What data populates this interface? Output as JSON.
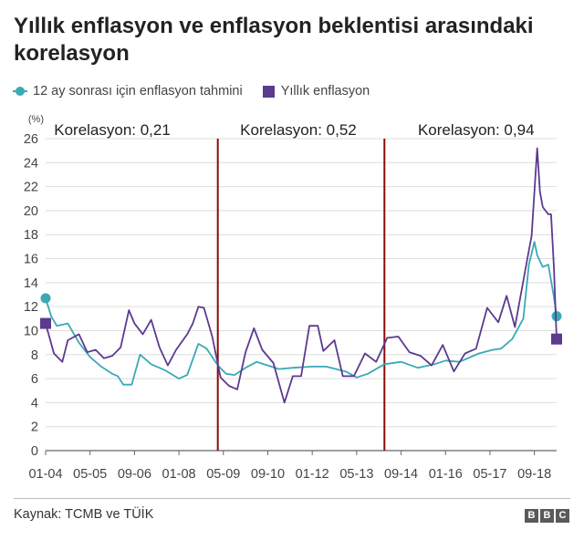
{
  "title": "Yıllık enflasyon ve enflasyon beklentisi arasındaki korelasyon",
  "source": "Kaynak: TCMB ve TÜİK",
  "logo": "BBC",
  "colors": {
    "expectation": "#3aa9b5",
    "inflation": "#5c3a8f",
    "divider": "#8b0a0a"
  },
  "chart_data": {
    "type": "line",
    "title": "Yıllık enflasyon ve enflasyon beklentisi arasındaki korelasyon",
    "ylabel": "(%)",
    "ylim": [
      0,
      26
    ],
    "yticks": [
      0,
      2,
      4,
      6,
      8,
      10,
      12,
      14,
      16,
      18,
      20,
      22,
      24,
      26
    ],
    "xlim": [
      "2004-01",
      "2019-05"
    ],
    "xticks": [
      "01-04",
      "05-05",
      "09-06",
      "01-08",
      "05-09",
      "09-10",
      "01-12",
      "05-13",
      "09-14",
      "01-16",
      "05-17",
      "09-18"
    ],
    "legend": [
      "12 ay sonrası için enflasyon tahmini",
      "Yıllık enflasyon"
    ],
    "legend_position": "top-left",
    "grid": "horizontal",
    "dividers": [
      "2009-03",
      "2014-03"
    ],
    "annotations": [
      "Korelasyon: 0,21",
      "Korelasyon: 0,52",
      "Korelasyon: 0,94"
    ],
    "series": [
      {
        "name": "12 ay sonrası için enflasyon tahmini",
        "marker": "circle",
        "points": [
          [
            "2004-01",
            12.7
          ],
          [
            "2004-03",
            11.2
          ],
          [
            "2004-05",
            10.4
          ],
          [
            "2004-09",
            10.6
          ],
          [
            "2005-01",
            9.0
          ],
          [
            "2005-05",
            7.8
          ],
          [
            "2005-09",
            7.0
          ],
          [
            "2006-01",
            6.4
          ],
          [
            "2006-03",
            6.2
          ],
          [
            "2006-05",
            5.5
          ],
          [
            "2006-08",
            5.5
          ],
          [
            "2006-11",
            8.0
          ],
          [
            "2007-03",
            7.2
          ],
          [
            "2007-08",
            6.7
          ],
          [
            "2008-01",
            6.0
          ],
          [
            "2008-04",
            6.3
          ],
          [
            "2008-08",
            8.9
          ],
          [
            "2008-11",
            8.5
          ],
          [
            "2009-03",
            7.1
          ],
          [
            "2009-06",
            6.4
          ],
          [
            "2009-09",
            6.3
          ],
          [
            "2010-01",
            6.9
          ],
          [
            "2010-05",
            7.4
          ],
          [
            "2010-09",
            7.1
          ],
          [
            "2011-01",
            6.8
          ],
          [
            "2011-06",
            6.9
          ],
          [
            "2012-01",
            7.0
          ],
          [
            "2012-06",
            7.0
          ],
          [
            "2013-01",
            6.6
          ],
          [
            "2013-05",
            6.1
          ],
          [
            "2013-09",
            6.4
          ],
          [
            "2014-03",
            7.2
          ],
          [
            "2014-09",
            7.4
          ],
          [
            "2015-03",
            6.9
          ],
          [
            "2015-09",
            7.2
          ],
          [
            "2016-01",
            7.5
          ],
          [
            "2016-06",
            7.4
          ],
          [
            "2017-01",
            8.1
          ],
          [
            "2017-06",
            8.4
          ],
          [
            "2017-09",
            8.5
          ],
          [
            "2018-01",
            9.3
          ],
          [
            "2018-05",
            11.0
          ],
          [
            "2018-07",
            15.5
          ],
          [
            "2018-09",
            17.4
          ],
          [
            "2018-10",
            16.3
          ],
          [
            "2018-12",
            15.3
          ],
          [
            "2019-02",
            15.5
          ],
          [
            "2019-04",
            12.8
          ],
          [
            "2019-05",
            11.2
          ]
        ]
      },
      {
        "name": "Yıllık enflasyon",
        "marker": "square",
        "points": [
          [
            "2004-01",
            10.6
          ],
          [
            "2004-04",
            8.1
          ],
          [
            "2004-07",
            7.4
          ],
          [
            "2004-09",
            9.2
          ],
          [
            "2005-01",
            9.7
          ],
          [
            "2005-04",
            8.2
          ],
          [
            "2005-07",
            8.4
          ],
          [
            "2005-10",
            7.7
          ],
          [
            "2006-01",
            7.9
          ],
          [
            "2006-04",
            8.6
          ],
          [
            "2006-07",
            11.7
          ],
          [
            "2006-09",
            10.6
          ],
          [
            "2006-12",
            9.7
          ],
          [
            "2007-03",
            10.9
          ],
          [
            "2007-06",
            8.6
          ],
          [
            "2007-09",
            7.1
          ],
          [
            "2007-12",
            8.4
          ],
          [
            "2008-04",
            9.7
          ],
          [
            "2008-06",
            10.6
          ],
          [
            "2008-08",
            12.0
          ],
          [
            "2008-10",
            11.9
          ],
          [
            "2009-01",
            9.5
          ],
          [
            "2009-04",
            6.1
          ],
          [
            "2009-07",
            5.4
          ],
          [
            "2009-10",
            5.1
          ],
          [
            "2010-01",
            8.2
          ],
          [
            "2010-04",
            10.2
          ],
          [
            "2010-07",
            8.4
          ],
          [
            "2010-11",
            7.3
          ],
          [
            "2011-03",
            4.0
          ],
          [
            "2011-06",
            6.2
          ],
          [
            "2011-09",
            6.2
          ],
          [
            "2011-12",
            10.4
          ],
          [
            "2012-03",
            10.4
          ],
          [
            "2012-05",
            8.3
          ],
          [
            "2012-09",
            9.2
          ],
          [
            "2012-12",
            6.2
          ],
          [
            "2013-04",
            6.2
          ],
          [
            "2013-08",
            8.1
          ],
          [
            "2013-12",
            7.4
          ],
          [
            "2014-04",
            9.4
          ],
          [
            "2014-08",
            9.5
          ],
          [
            "2014-12",
            8.2
          ],
          [
            "2015-04",
            7.9
          ],
          [
            "2015-08",
            7.1
          ],
          [
            "2015-12",
            8.8
          ],
          [
            "2016-04",
            6.6
          ],
          [
            "2016-08",
            8.1
          ],
          [
            "2016-12",
            8.5
          ],
          [
            "2017-04",
            11.9
          ],
          [
            "2017-08",
            10.7
          ],
          [
            "2017-11",
            12.9
          ],
          [
            "2018-02",
            10.3
          ],
          [
            "2018-06",
            15.4
          ],
          [
            "2018-08",
            17.9
          ],
          [
            "2018-10",
            25.2
          ],
          [
            "2018-11",
            21.6
          ],
          [
            "2018-12",
            20.3
          ],
          [
            "2019-02",
            19.7
          ],
          [
            "2019-03",
            19.7
          ],
          [
            "2019-04",
            15.3
          ],
          [
            "2019-05",
            9.3
          ]
        ]
      }
    ]
  }
}
